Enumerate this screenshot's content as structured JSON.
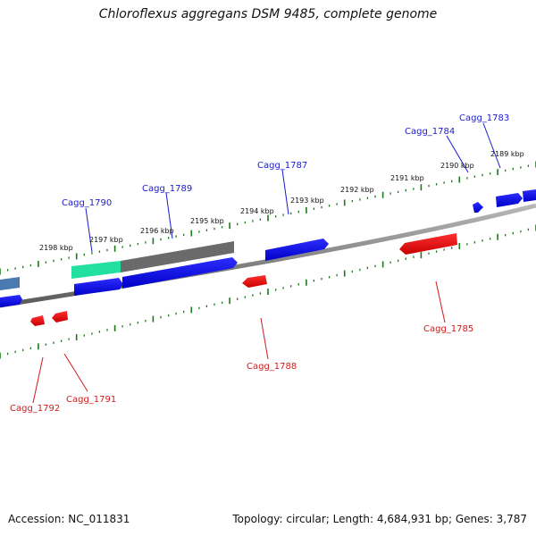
{
  "title": "Chloroflexus aggregans DSM 9485, complete genome",
  "footer": {
    "accession": "Accession: NC_011831",
    "summary": "Topology: circular; Length: 4,684,931 bp; Genes: 3,787"
  },
  "colors": {
    "forward_gene": "#1414e6",
    "reverse_gene": "#e61414",
    "backbone": "#808080",
    "tick": "#1a7a1a",
    "rna": "#22e0a0",
    "gray_feature": "#666666",
    "steel_feature": "#4a7ab0"
  },
  "scale_labels": [
    "2198 kbp",
    "2197 kbp",
    "2196 kbp",
    "2195 kbp",
    "2194 kbp",
    "2193 kbp",
    "2192 kbp",
    "2191 kbp",
    "2190 kbp",
    "2189 kbp"
  ],
  "forward_labels": [
    "Cagg_1790",
    "Cagg_1789",
    "Cagg_1787",
    "Cagg_1784",
    "Cagg_1783"
  ],
  "reverse_labels": [
    "Cagg_1792",
    "Cagg_1791",
    "Cagg_1788",
    "Cagg_1785"
  ]
}
